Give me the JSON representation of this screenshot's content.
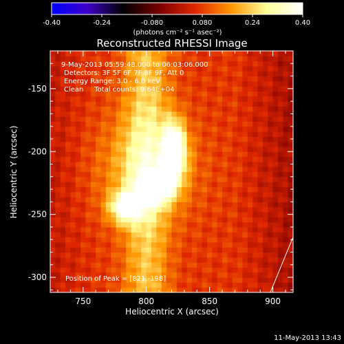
{
  "chart_data": {
    "type": "heatmap",
    "title": "Reconstructed RHESSI Image",
    "xlabel": "Heliocentric X (arcsec)",
    "ylabel": "Heliocentric Y (arcsec)",
    "xlim": [
      724,
      916
    ],
    "ylim": [
      -312,
      -120
    ],
    "x_ticks": [
      750,
      800,
      850,
      900
    ],
    "y_ticks": [
      -150,
      -200,
      -250,
      -300
    ],
    "colorbar": {
      "range": [
        -0.4,
        0.4
      ],
      "ticks": [
        "-0.40",
        "-0.24",
        "-0.080",
        "0.080",
        "0.24",
        "0.40"
      ],
      "unit_label": "(photons cm⁻² s⁻¹ asec⁻²)",
      "colormap": [
        "#0000ff",
        "#3d00c8",
        "#000000",
        "#7a0000",
        "#e02800",
        "#ff9600",
        "#ffff9a",
        "#ffffff"
      ]
    },
    "annotations": [
      "9-May-2013 05:59:48.000 to 06:03:06.000",
      "Detectors: 3F 5F 6F 7F 8F 9F, Att 0",
      "Energy Range: 3.0 - 6.0 keV",
      "Clean     Total counts: 9.64E+04"
    ],
    "peak_label": "Position of Peak = [821,-198]",
    "peak": [
      821,
      -198
    ],
    "approx_intensity_map": {
      "background_level": 0.07,
      "sources": [
        {
          "x": 822,
          "y": -200,
          "peak": 0.4
        },
        {
          "x": 808,
          "y": -228,
          "peak": 0.34
        },
        {
          "x": 784,
          "y": -244,
          "peak": 0.3
        }
      ],
      "halo": {
        "x": 800,
        "y": -212,
        "peak": 0.14
      }
    },
    "limb_line": {
      "x1": 898,
      "y1": -312,
      "x2": 916,
      "y2": -268
    }
  },
  "footer": {
    "date_stamp": "11-May-2013 13:43"
  }
}
